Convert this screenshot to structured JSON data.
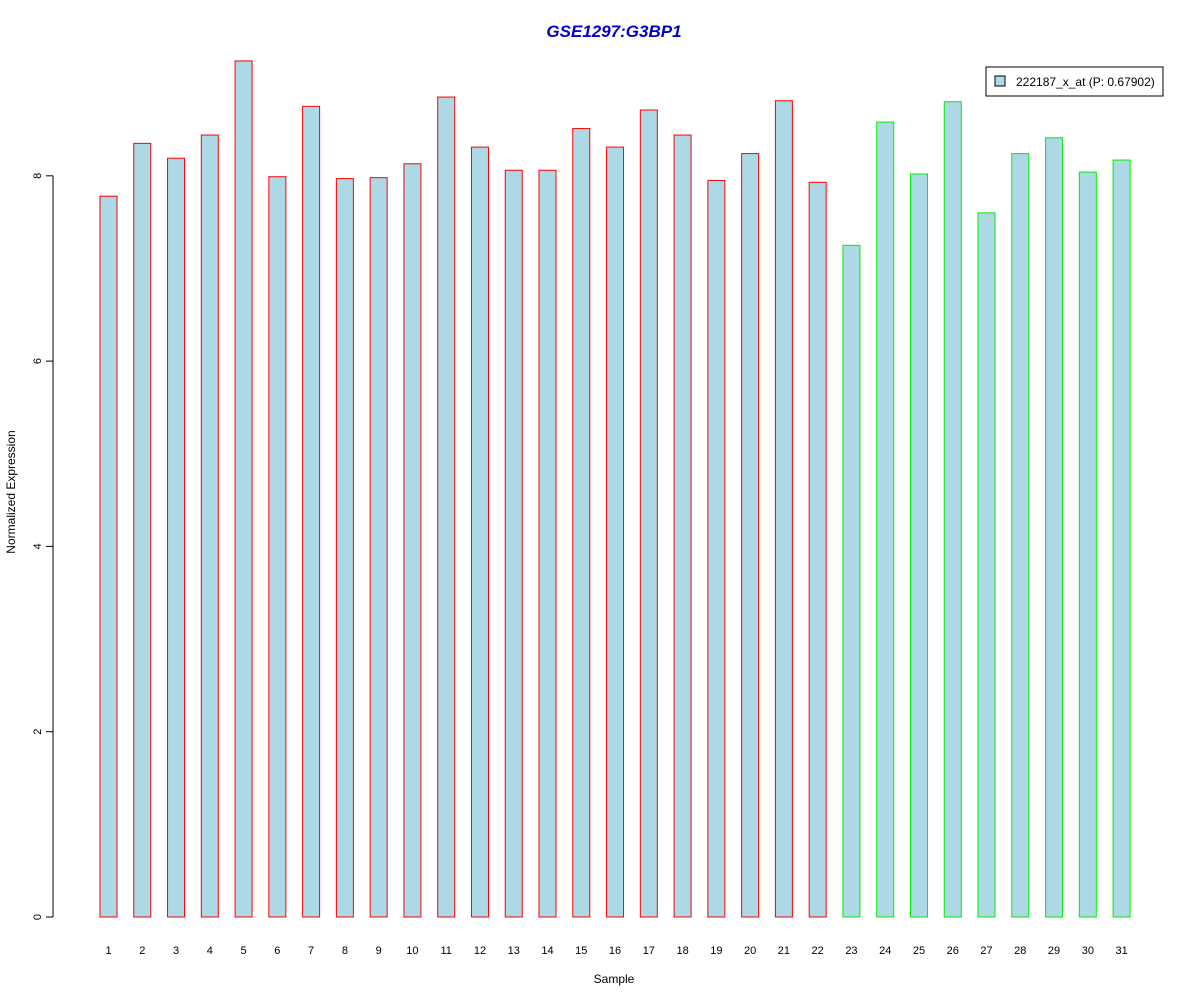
{
  "chart_data": {
    "type": "bar",
    "title": "GSE1297:G3BP1",
    "xlabel": "Sample",
    "ylabel": "Normalized Expression",
    "ylim": [
      0,
      9.25
    ],
    "yticks": [
      0,
      2,
      4,
      6,
      8
    ],
    "grid": false,
    "legend_position": "top-right",
    "categories": [
      "1",
      "2",
      "3",
      "4",
      "5",
      "6",
      "7",
      "8",
      "9",
      "10",
      "11",
      "12",
      "13",
      "14",
      "15",
      "16",
      "17",
      "18",
      "19",
      "20",
      "21",
      "22",
      "23",
      "24",
      "25",
      "26",
      "27",
      "28",
      "29",
      "30",
      "31"
    ],
    "series": [
      {
        "name": "222187_x_at (P: 0.67902)",
        "values": [
          7.78,
          8.35,
          8.19,
          8.44,
          9.24,
          7.99,
          8.75,
          7.97,
          7.98,
          8.13,
          8.85,
          8.31,
          8.06,
          8.06,
          8.51,
          8.31,
          8.71,
          8.44,
          7.95,
          8.24,
          8.81,
          7.93,
          7.25,
          8.58,
          8.02,
          8.8,
          7.6,
          8.24,
          8.41,
          8.04,
          8.17
        ]
      }
    ],
    "groups": [
      {
        "samples": [
          1,
          22
        ],
        "border_color": "#ff0000"
      },
      {
        "samples": [
          23,
          31
        ],
        "border_color": "#00ee00"
      }
    ],
    "colors": {
      "bar_fill": "#add8e6",
      "title": "#0000cd",
      "axis": "#000000"
    }
  }
}
